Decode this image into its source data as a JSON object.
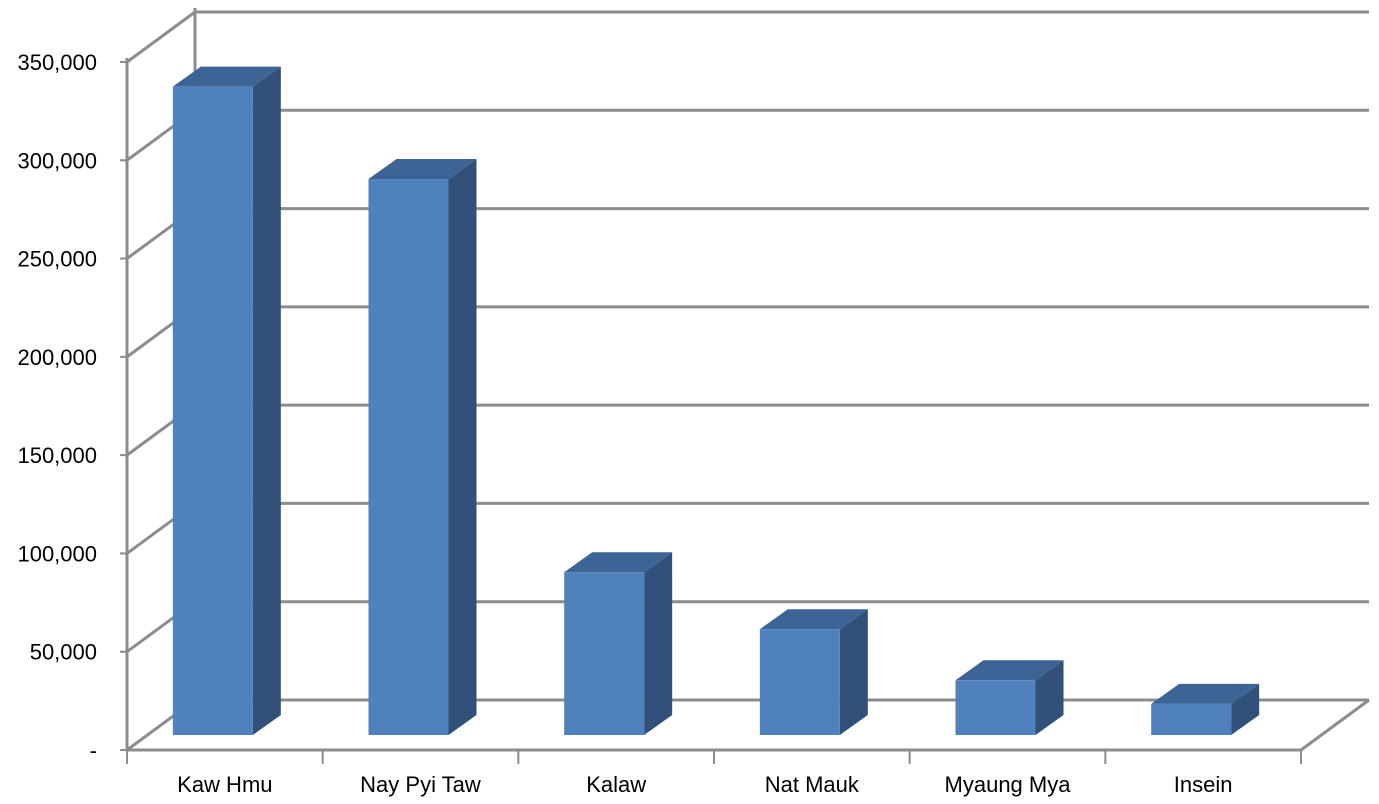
{
  "chart_data": {
    "type": "bar",
    "style": "3d-column",
    "title": "",
    "xlabel": "",
    "ylabel": "",
    "categories": [
      "Kaw Hmu",
      "Nay Pyi Taw",
      "Kalaw",
      "Nat Mauk",
      "Myaung Mya",
      "Insein"
    ],
    "values": [
      340000,
      293000,
      93000,
      64000,
      38000,
      26000
    ],
    "ylim": [
      0,
      350000
    ],
    "y_ticks": [
      0,
      50000,
      100000,
      150000,
      200000,
      250000,
      300000,
      350000
    ],
    "y_tick_labels": [
      "-",
      "50,000",
      "100,000",
      "150,000",
      "200,000",
      "250,000",
      "300,000",
      "350,000"
    ],
    "grid": true,
    "legend": "none"
  },
  "colors": {
    "bar_front": "#4f81bd",
    "bar_side": "#31507a",
    "bar_top": "#3c6494",
    "gridline": "#8c8c8c"
  }
}
